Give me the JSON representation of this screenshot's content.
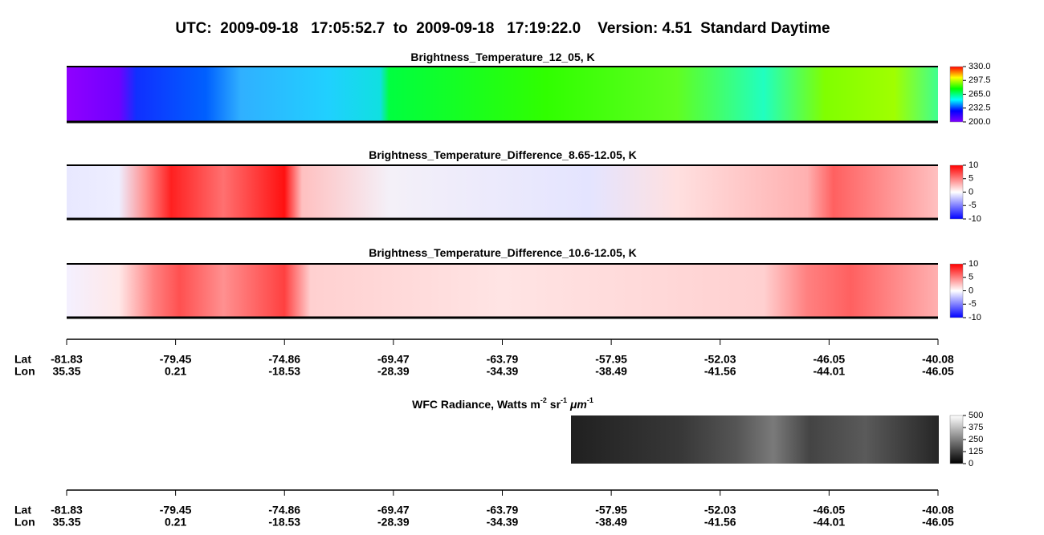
{
  "title": "UTC:  2009-09-18   17:05:52.7  to  2009-09-18   17:19:22.0    Version: 4.51  Standard Daytime",
  "chart_data": [
    {
      "type": "heatmap",
      "title": [
        "Brightness_Temperature_12_05, K"
      ],
      "clim": [
        200,
        330
      ],
      "cticks": [
        {
          "value": 330,
          "label": "330.0"
        },
        {
          "value": 297.5,
          "label": "297.5"
        },
        {
          "value": 265,
          "label": "265.0"
        },
        {
          "value": 232.5,
          "label": "232.5"
        },
        {
          "value": 200,
          "label": "200.0"
        }
      ],
      "colormap": [
        "#8000ff",
        "#0000ff",
        "#00ffff",
        "#00ff00",
        "#ffff00",
        "#ff0000"
      ]
    },
    {
      "type": "heatmap",
      "title": [
        "Brightness_Temperature_Difference_8.65-12.05, K"
      ],
      "clim": [
        -10,
        10
      ],
      "cticks": [
        10,
        5,
        0,
        -5,
        -10
      ],
      "colormap": [
        "#0000ff",
        "#ffffff",
        "#ff0000"
      ]
    },
    {
      "type": "heatmap",
      "title": [
        "Brightness_Temperature_Difference_10.6-12.05, K"
      ],
      "clim": [
        -10,
        10
      ],
      "cticks": [
        10,
        5,
        0,
        -5,
        -10
      ],
      "colormap": [
        "#0000ff",
        "#ffffff",
        "#ff0000"
      ]
    },
    {
      "type": "heatmap",
      "title": [
        "WFC Radiance, Watts m",
        "-2",
        " sr",
        "-1",
        " ",
        "μm",
        "-1"
      ],
      "clim": [
        0,
        500
      ],
      "cticks": [
        500,
        375,
        250,
        125,
        0
      ],
      "colormap": [
        "#000000",
        "#ffffff"
      ]
    }
  ],
  "axes": [
    {
      "rows": [
        {
          "label": "Lat",
          "values": [
            "-81.83",
            "-79.45",
            "-74.86",
            "-69.47",
            "-63.79",
            "-57.95",
            "-52.03",
            "-46.05",
            "-40.08"
          ]
        },
        {
          "label": "Lon",
          "values": [
            "35.35",
            "0.21",
            "-18.53",
            "-28.39",
            "-34.39",
            "-38.49",
            "-41.56",
            "-44.01",
            "-46.05"
          ]
        }
      ]
    },
    {
      "rows": [
        {
          "label": "Lat",
          "values": [
            "-81.83",
            "-79.45",
            "-74.86",
            "-69.47",
            "-63.79",
            "-57.95",
            "-52.03",
            "-46.05",
            "-40.08"
          ]
        },
        {
          "label": "Lon",
          "values": [
            "35.35",
            "0.21",
            "-18.53",
            "-28.39",
            "-34.39",
            "-38.49",
            "-41.56",
            "-44.01",
            "-46.05"
          ]
        }
      ]
    }
  ]
}
